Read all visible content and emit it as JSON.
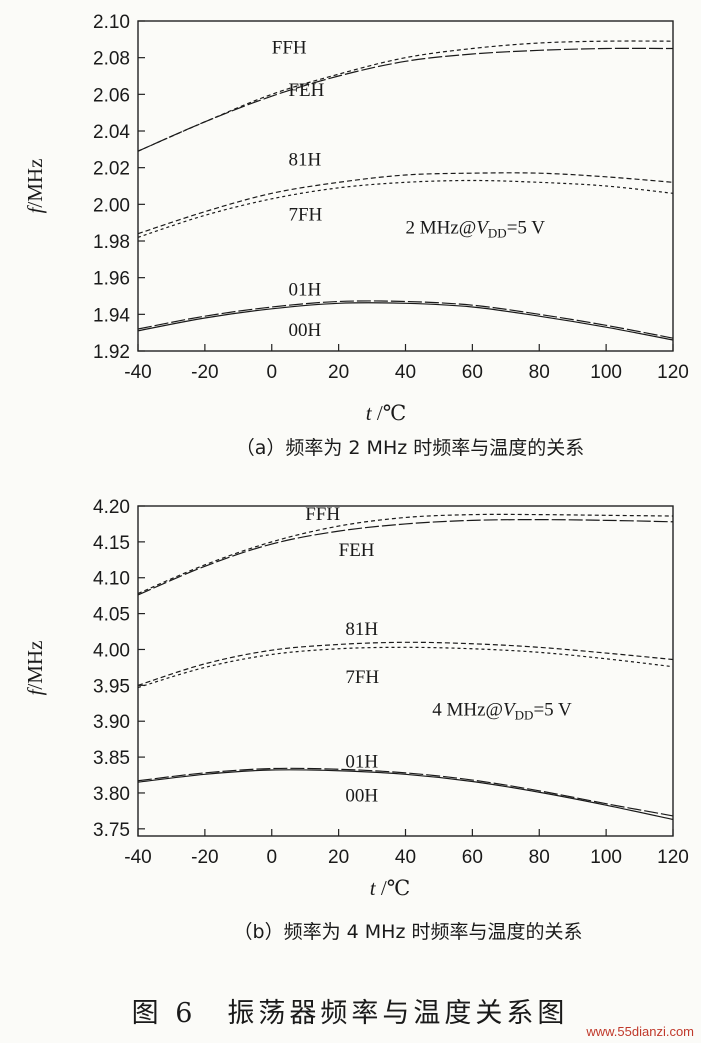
{
  "figure_title": "图 6　振荡器频率与温度关系图",
  "watermark": "www.55dianzi.com",
  "chart_data": [
    {
      "type": "line",
      "caption": "（a）频率为 2 MHz 时频率与温度的关系",
      "condition": {
        "prefix": "2 MHz@",
        "v": "V",
        "sub": "DD",
        "suffix": "=5 V"
      },
      "ylabel": {
        "f": "f",
        "unit": "/MHz"
      },
      "xlabel": {
        "t": "t",
        "unit": " /℃"
      },
      "xlim": [
        -40,
        120
      ],
      "ylim": [
        1.92,
        2.1
      ],
      "xticks": [
        "-40",
        "-20",
        "0",
        "20",
        "40",
        "60",
        "80",
        "100",
        "120"
      ],
      "yticks": [
        "1.92",
        "1.94",
        "1.96",
        "1.98",
        "2.00",
        "2.02",
        "2.04",
        "2.06",
        "2.08",
        "2.10"
      ],
      "x": [
        -40,
        -20,
        0,
        20,
        40,
        60,
        80,
        100,
        120
      ],
      "series": [
        {
          "name": "FFH",
          "values": [
            2.029,
            2.045,
            2.06,
            2.071,
            2.08,
            2.085,
            2.088,
            2.089,
            2.089
          ],
          "dash": "4,3"
        },
        {
          "name": "FEH",
          "values": [
            2.029,
            2.045,
            2.059,
            2.07,
            2.078,
            2.082,
            2.084,
            2.085,
            2.085
          ],
          "dash": "14,3"
        },
        {
          "name": "81H",
          "values": [
            1.984,
            1.996,
            2.006,
            2.012,
            2.016,
            2.017,
            2.017,
            2.015,
            2.012
          ],
          "dash": "5,3"
        },
        {
          "name": "7FH",
          "values": [
            1.982,
            1.994,
            2.003,
            2.009,
            2.012,
            2.013,
            2.012,
            2.01,
            2.006
          ],
          "dash": "3,3"
        },
        {
          "name": "01H",
          "values": [
            1.932,
            1.939,
            1.944,
            1.947,
            1.947,
            1.945,
            1.94,
            1.934,
            1.927
          ],
          "dash": "14,3"
        },
        {
          "name": "00H",
          "values": [
            1.931,
            1.938,
            1.943,
            1.946,
            1.946,
            1.944,
            1.939,
            1.933,
            1.926
          ],
          "dash": ""
        }
      ],
      "label_positions": {
        "FFH": [
          0,
          2.086
        ],
        "FEH": [
          5,
          2.063
        ],
        "81H": [
          5,
          2.025
        ],
        "7FH": [
          5,
          1.995
        ],
        "01H": [
          5,
          1.954
        ],
        "00H": [
          5,
          1.932
        ]
      },
      "condition_position": [
        40,
        1.988
      ]
    },
    {
      "type": "line",
      "caption": "（b）频率为 4 MHz 时频率与温度的关系",
      "condition": {
        "prefix": "4 MHz@",
        "v": "V",
        "sub": "DD",
        "suffix": "=5 V"
      },
      "ylabel": {
        "f": "f",
        "unit": "/MHz"
      },
      "xlabel": {
        "t": "t",
        "unit": " /℃"
      },
      "xlim": [
        -40,
        120
      ],
      "ylim": [
        3.74,
        4.2
      ],
      "xticks": [
        "-40",
        "-20",
        "0",
        "20",
        "40",
        "60",
        "80",
        "100",
        "120"
      ],
      "yticks": [
        "3.75",
        "3.80",
        "3.85",
        "3.90",
        "3.95",
        "4.00",
        "4.05",
        "4.10",
        "4.15",
        "4.20"
      ],
      "ytick_values": [
        3.75,
        3.8,
        3.85,
        3.9,
        3.95,
        4.0,
        4.05,
        4.1,
        4.15,
        4.2
      ],
      "x": [
        -40,
        -20,
        0,
        20,
        40,
        60,
        80,
        100,
        120
      ],
      "series": [
        {
          "name": "FFH",
          "values": [
            4.078,
            4.118,
            4.15,
            4.172,
            4.184,
            4.188,
            4.188,
            4.187,
            4.186
          ],
          "dash": "4,3"
        },
        {
          "name": "FEH",
          "values": [
            4.076,
            4.116,
            4.147,
            4.165,
            4.175,
            4.18,
            4.181,
            4.18,
            4.178
          ],
          "dash": "14,3"
        },
        {
          "name": "81H",
          "values": [
            3.95,
            3.98,
            3.999,
            4.007,
            4.01,
            4.008,
            4.003,
            3.995,
            3.986
          ],
          "dash": "5,3"
        },
        {
          "name": "7FH",
          "values": [
            3.947,
            3.975,
            3.993,
            4.001,
            4.003,
            4.001,
            3.996,
            3.987,
            3.976
          ],
          "dash": "3,3"
        },
        {
          "name": "01H",
          "values": [
            3.817,
            3.828,
            3.834,
            3.833,
            3.828,
            3.818,
            3.803,
            3.785,
            3.768
          ],
          "dash": "14,3"
        },
        {
          "name": "00H",
          "values": [
            3.815,
            3.826,
            3.832,
            3.831,
            3.826,
            3.816,
            3.801,
            3.783,
            3.763
          ],
          "dash": ""
        }
      ],
      "label_positions": {
        "FFH": [
          10,
          4.19
        ],
        "FEH": [
          20,
          4.14
        ],
        "81H": [
          22,
          4.03
        ],
        "7FH": [
          22,
          3.963
        ],
        "01H": [
          22,
          3.845
        ],
        "00H": [
          22,
          3.798
        ]
      },
      "condition_position": [
        48,
        3.918
      ]
    }
  ]
}
